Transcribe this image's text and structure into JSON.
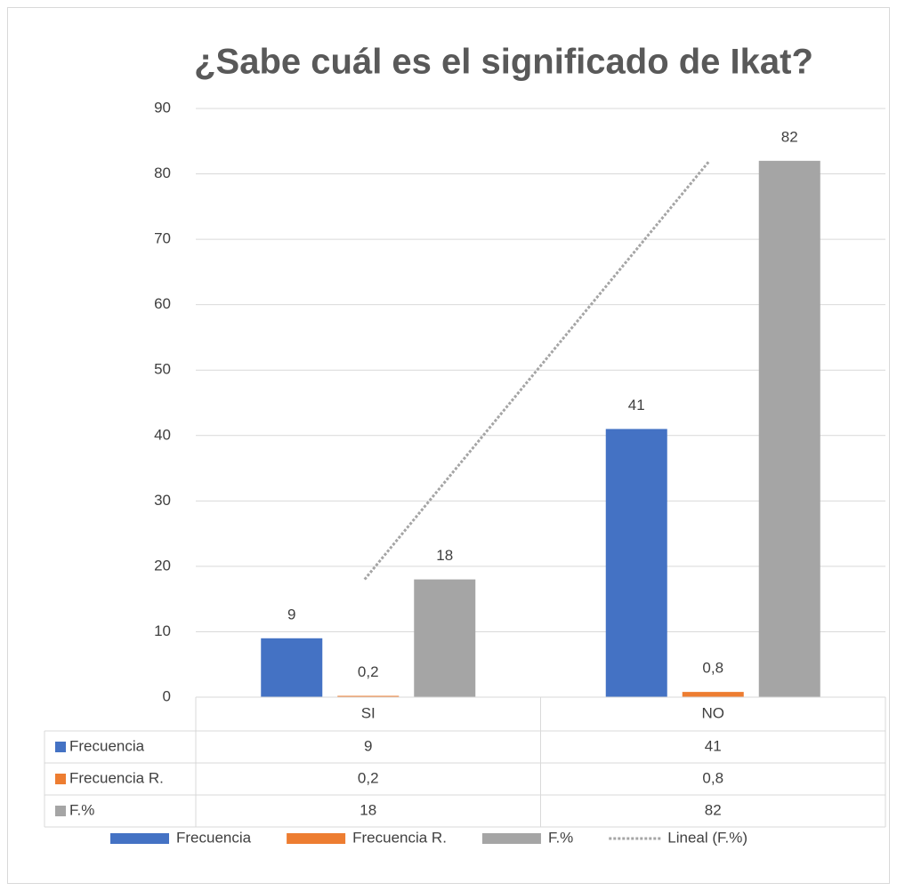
{
  "chart_data": {
    "type": "bar",
    "title": "¿Sabe cuál es el significado de Ikat?",
    "categories": [
      "SI",
      "NO"
    ],
    "series": [
      {
        "name": "Frecuencia",
        "color": "#4472c4",
        "values": [
          9,
          41
        ]
      },
      {
        "name": "Frecuencia R.",
        "color": "#ed7d31",
        "values": [
          0.2,
          0.8
        ],
        "value_labels": [
          "0,2",
          "0,8"
        ]
      },
      {
        "name": "F.%",
        "color": "#a5a5a5",
        "values": [
          18,
          82
        ],
        "trendline": "Lineal (F.%)"
      }
    ],
    "ylim": [
      0,
      90
    ],
    "yticks": [
      0,
      10,
      20,
      30,
      40,
      50,
      60,
      70,
      80,
      90
    ],
    "grid": true,
    "data_table": true,
    "legend": "bottom"
  }
}
